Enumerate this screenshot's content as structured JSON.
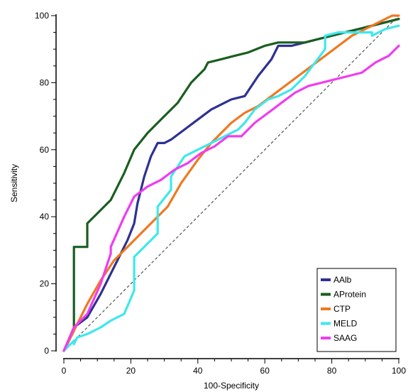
{
  "chart_data": {
    "type": "line",
    "title": "",
    "xlabel": "100-Specificity",
    "ylabel": "Sensitivity",
    "xlim": [
      0,
      100
    ],
    "ylim": [
      0,
      100
    ],
    "xticks": [
      0,
      20,
      40,
      60,
      80,
      100
    ],
    "yticks": [
      0,
      20,
      40,
      60,
      80,
      100
    ],
    "grid": false,
    "reference_line": "diagonal dashed",
    "legend_position": "bottom-right",
    "series": [
      {
        "name": "AAlb",
        "color": "#2e3192",
        "x": [
          0,
          3,
          7,
          11,
          15,
          19,
          21,
          22,
          24,
          26,
          28,
          30,
          32,
          36,
          40,
          44,
          48,
          50,
          54,
          58,
          62,
          64,
          64,
          68,
          72,
          76,
          80,
          84,
          88,
          92,
          96,
          100
        ],
        "y": [
          0,
          7,
          10,
          17,
          25,
          33,
          38,
          44,
          52,
          58,
          62,
          62,
          63,
          66,
          69,
          72,
          74,
          75,
          76,
          82,
          87,
          91,
          91,
          91,
          92,
          93,
          94,
          95,
          96,
          97,
          98,
          99
        ]
      },
      {
        "name": "AProtein",
        "color": "#1a5e20",
        "x": [
          0,
          3,
          3,
          7,
          7,
          10,
          14,
          15,
          18,
          21,
          25,
          29,
          32,
          34,
          38,
          42,
          43,
          47,
          51,
          55,
          60,
          64,
          68,
          72,
          76,
          80,
          84,
          88,
          92,
          96,
          100
        ],
        "y": [
          0,
          6,
          31,
          31,
          38,
          41,
          45,
          47,
          53,
          60,
          65,
          69,
          72,
          74,
          80,
          84,
          86,
          87,
          88,
          89,
          91,
          92,
          92,
          92,
          93,
          94,
          95,
          96,
          97,
          98,
          99
        ]
      },
      {
        "name": "CTP",
        "color": "#f07820",
        "x": [
          0,
          3,
          7,
          11,
          15,
          19,
          23,
          27,
          31,
          35,
          40,
          44,
          47,
          50,
          54,
          58,
          62,
          66,
          70,
          74,
          78,
          82,
          86,
          90,
          94,
          98,
          100
        ],
        "y": [
          0,
          6,
          14,
          21,
          27,
          31,
          35,
          39,
          43,
          50,
          57,
          62,
          65,
          68,
          71,
          73,
          76,
          79,
          82,
          85,
          88,
          91,
          94,
          96,
          98,
          100,
          100
        ]
      },
      {
        "name": "MELD",
        "color": "#3ee8ec",
        "x": [
          0,
          3,
          3,
          4,
          7,
          11,
          14,
          18,
          21,
          21,
          28,
          28,
          32,
          32,
          34,
          36,
          40,
          44,
          48,
          52,
          54,
          57,
          61,
          64,
          68,
          72,
          75,
          78,
          78,
          82,
          92,
          92,
          96,
          100
        ],
        "y": [
          0,
          3,
          2,
          4,
          5,
          7,
          9,
          11,
          18,
          28,
          35,
          43,
          48,
          52,
          55,
          58,
          60,
          62,
          64,
          66,
          68,
          72,
          75,
          76,
          78,
          82,
          86,
          90,
          94,
          95,
          95,
          94,
          96,
          97
        ]
      },
      {
        "name": "SAAG",
        "color": "#f03cf0",
        "x": [
          0,
          3,
          7,
          11,
          14,
          14,
          18,
          21,
          25,
          29,
          33,
          37,
          41,
          45,
          49,
          53,
          57,
          61,
          65,
          69,
          73,
          77,
          81,
          85,
          89,
          93,
          97,
          100
        ],
        "y": [
          0,
          7,
          11,
          20,
          29,
          31,
          40,
          46,
          49,
          51,
          54,
          56,
          59,
          61,
          64,
          64,
          68,
          71,
          74,
          77,
          79,
          80,
          81,
          82,
          83,
          86,
          88,
          91
        ]
      }
    ]
  }
}
